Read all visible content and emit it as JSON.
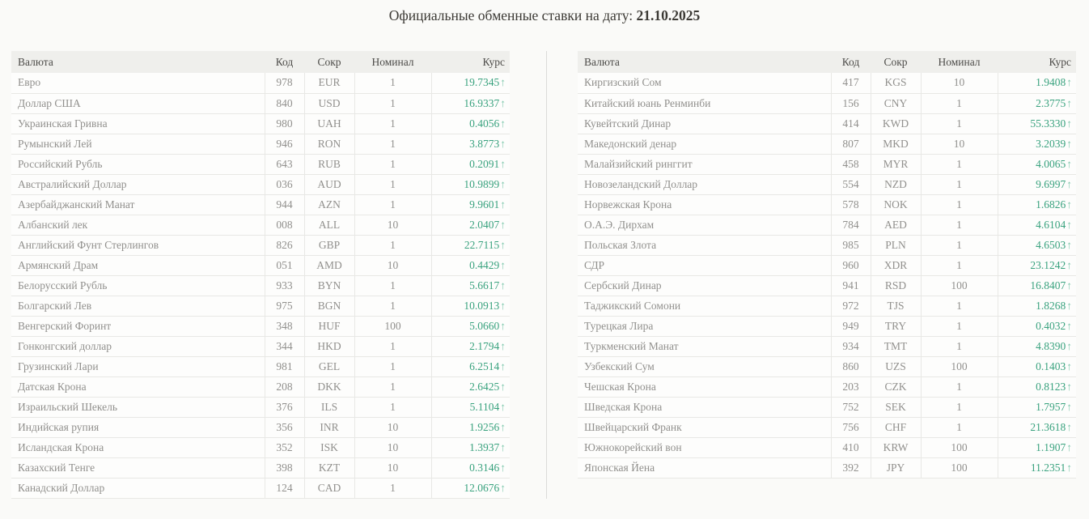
{
  "title": {
    "prefix": "Официальные обменные ставки на дату:",
    "date": "21.10.2025"
  },
  "columns": {
    "currency": "Валюта",
    "code": "Код",
    "abbr": "Сокр",
    "nominal": "Номинал",
    "rate": "Курс"
  },
  "trend_arrow_up": "↑",
  "colors": {
    "rate_green": "#39a27e",
    "arrow_teal": "#7fc8ad",
    "header_bg": "#efefec",
    "row_bg": "#fdfdfc",
    "page_bg": "#fafaf8",
    "border": "#e8e8e5",
    "text_grey": "#91908d"
  },
  "left_table_rows": [
    {
      "currency": "Евро",
      "code": "978",
      "abbr": "EUR",
      "nominal": "1",
      "rate": "19.7345",
      "trend": "up"
    },
    {
      "currency": "Доллар США",
      "code": "840",
      "abbr": "USD",
      "nominal": "1",
      "rate": "16.9337",
      "trend": "up"
    },
    {
      "currency": "Украинская Гривна",
      "code": "980",
      "abbr": "UAH",
      "nominal": "1",
      "rate": "0.4056",
      "trend": "up"
    },
    {
      "currency": "Румынский Лей",
      "code": "946",
      "abbr": "RON",
      "nominal": "1",
      "rate": "3.8773",
      "trend": "up"
    },
    {
      "currency": "Российский Рубль",
      "code": "643",
      "abbr": "RUB",
      "nominal": "1",
      "rate": "0.2091",
      "trend": "up"
    },
    {
      "currency": "Австралийский Доллар",
      "code": "036",
      "abbr": "AUD",
      "nominal": "1",
      "rate": "10.9899",
      "trend": "up"
    },
    {
      "currency": "Азербайджанский Манат",
      "code": "944",
      "abbr": "AZN",
      "nominal": "1",
      "rate": "9.9601",
      "trend": "up"
    },
    {
      "currency": "Албанский лек",
      "code": "008",
      "abbr": "ALL",
      "nominal": "10",
      "rate": "2.0407",
      "trend": "up"
    },
    {
      "currency": "Английский Фунт Стерлингов",
      "code": "826",
      "abbr": "GBP",
      "nominal": "1",
      "rate": "22.7115",
      "trend": "up"
    },
    {
      "currency": "Армянский Драм",
      "code": "051",
      "abbr": "AMD",
      "nominal": "10",
      "rate": "0.4429",
      "trend": "up"
    },
    {
      "currency": "Белорусский Рубль",
      "code": "933",
      "abbr": "BYN",
      "nominal": "1",
      "rate": "5.6617",
      "trend": "up"
    },
    {
      "currency": "Болгарский Лев",
      "code": "975",
      "abbr": "BGN",
      "nominal": "1",
      "rate": "10.0913",
      "trend": "up"
    },
    {
      "currency": "Венгерский Форинт",
      "code": "348",
      "abbr": "HUF",
      "nominal": "100",
      "rate": "5.0660",
      "trend": "up"
    },
    {
      "currency": "Гонконгский доллар",
      "code": "344",
      "abbr": "HKD",
      "nominal": "1",
      "rate": "2.1794",
      "trend": "up"
    },
    {
      "currency": "Грузинский Лари",
      "code": "981",
      "abbr": "GEL",
      "nominal": "1",
      "rate": "6.2514",
      "trend": "up"
    },
    {
      "currency": "Датская Крона",
      "code": "208",
      "abbr": "DKK",
      "nominal": "1",
      "rate": "2.6425",
      "trend": "up"
    },
    {
      "currency": "Израильский Шекель",
      "code": "376",
      "abbr": "ILS",
      "nominal": "1",
      "rate": "5.1104",
      "trend": "up"
    },
    {
      "currency": "Индийская рупия",
      "code": "356",
      "abbr": "INR",
      "nominal": "10",
      "rate": "1.9256",
      "trend": "up"
    },
    {
      "currency": "Исландская Крона",
      "code": "352",
      "abbr": "ISK",
      "nominal": "10",
      "rate": "1.3937",
      "trend": "up"
    },
    {
      "currency": "Казахский Тенге",
      "code": "398",
      "abbr": "KZT",
      "nominal": "10",
      "rate": "0.3146",
      "trend": "up"
    },
    {
      "currency": "Канадский Доллар",
      "code": "124",
      "abbr": "CAD",
      "nominal": "1",
      "rate": "12.0676",
      "trend": "up"
    }
  ],
  "right_table_rows": [
    {
      "currency": "Киргизский Сом",
      "code": "417",
      "abbr": "KGS",
      "nominal": "10",
      "rate": "1.9408",
      "trend": "up"
    },
    {
      "currency": "Китайский юань Ренминби",
      "code": "156",
      "abbr": "CNY",
      "nominal": "1",
      "rate": "2.3775",
      "trend": "up"
    },
    {
      "currency": "Кувейтский Динар",
      "code": "414",
      "abbr": "KWD",
      "nominal": "1",
      "rate": "55.3330",
      "trend": "up"
    },
    {
      "currency": "Македонский денар",
      "code": "807",
      "abbr": "MKD",
      "nominal": "10",
      "rate": "3.2039",
      "trend": "up"
    },
    {
      "currency": "Малайзийский ринггит",
      "code": "458",
      "abbr": "MYR",
      "nominal": "1",
      "rate": "4.0065",
      "trend": "up"
    },
    {
      "currency": "Новозеландский Доллар",
      "code": "554",
      "abbr": "NZD",
      "nominal": "1",
      "rate": "9.6997",
      "trend": "up"
    },
    {
      "currency": "Норвежская Крона",
      "code": "578",
      "abbr": "NOK",
      "nominal": "1",
      "rate": "1.6826",
      "trend": "up"
    },
    {
      "currency": "О.А.Э. Дирхам",
      "code": "784",
      "abbr": "AED",
      "nominal": "1",
      "rate": "4.6104",
      "trend": "up"
    },
    {
      "currency": "Польская Злота",
      "code": "985",
      "abbr": "PLN",
      "nominal": "1",
      "rate": "4.6503",
      "trend": "up"
    },
    {
      "currency": "СДР",
      "code": "960",
      "abbr": "XDR",
      "nominal": "1",
      "rate": "23.1242",
      "trend": "up"
    },
    {
      "currency": "Сербский Динар",
      "code": "941",
      "abbr": "RSD",
      "nominal": "100",
      "rate": "16.8407",
      "trend": "up"
    },
    {
      "currency": "Таджикский Сомони",
      "code": "972",
      "abbr": "TJS",
      "nominal": "1",
      "rate": "1.8268",
      "trend": "up"
    },
    {
      "currency": "Турецкая Лира",
      "code": "949",
      "abbr": "TRY",
      "nominal": "1",
      "rate": "0.4032",
      "trend": "up"
    },
    {
      "currency": "Туркменский Манат",
      "code": "934",
      "abbr": "TMT",
      "nominal": "1",
      "rate": "4.8390",
      "trend": "up"
    },
    {
      "currency": "Узбекский Сум",
      "code": "860",
      "abbr": "UZS",
      "nominal": "100",
      "rate": "0.1403",
      "trend": "up"
    },
    {
      "currency": "Чешская Крона",
      "code": "203",
      "abbr": "CZK",
      "nominal": "1",
      "rate": "0.8123",
      "trend": "up"
    },
    {
      "currency": "Шведская Крона",
      "code": "752",
      "abbr": "SEK",
      "nominal": "1",
      "rate": "1.7957",
      "trend": "up"
    },
    {
      "currency": "Швейцарский Франк",
      "code": "756",
      "abbr": "CHF",
      "nominal": "1",
      "rate": "21.3618",
      "trend": "up"
    },
    {
      "currency": "Южнокорейский вон",
      "code": "410",
      "abbr": "KRW",
      "nominal": "100",
      "rate": "1.1907",
      "trend": "up"
    },
    {
      "currency": "Японская Йена",
      "code": "392",
      "abbr": "JPY",
      "nominal": "100",
      "rate": "11.2351",
      "trend": "up"
    }
  ]
}
